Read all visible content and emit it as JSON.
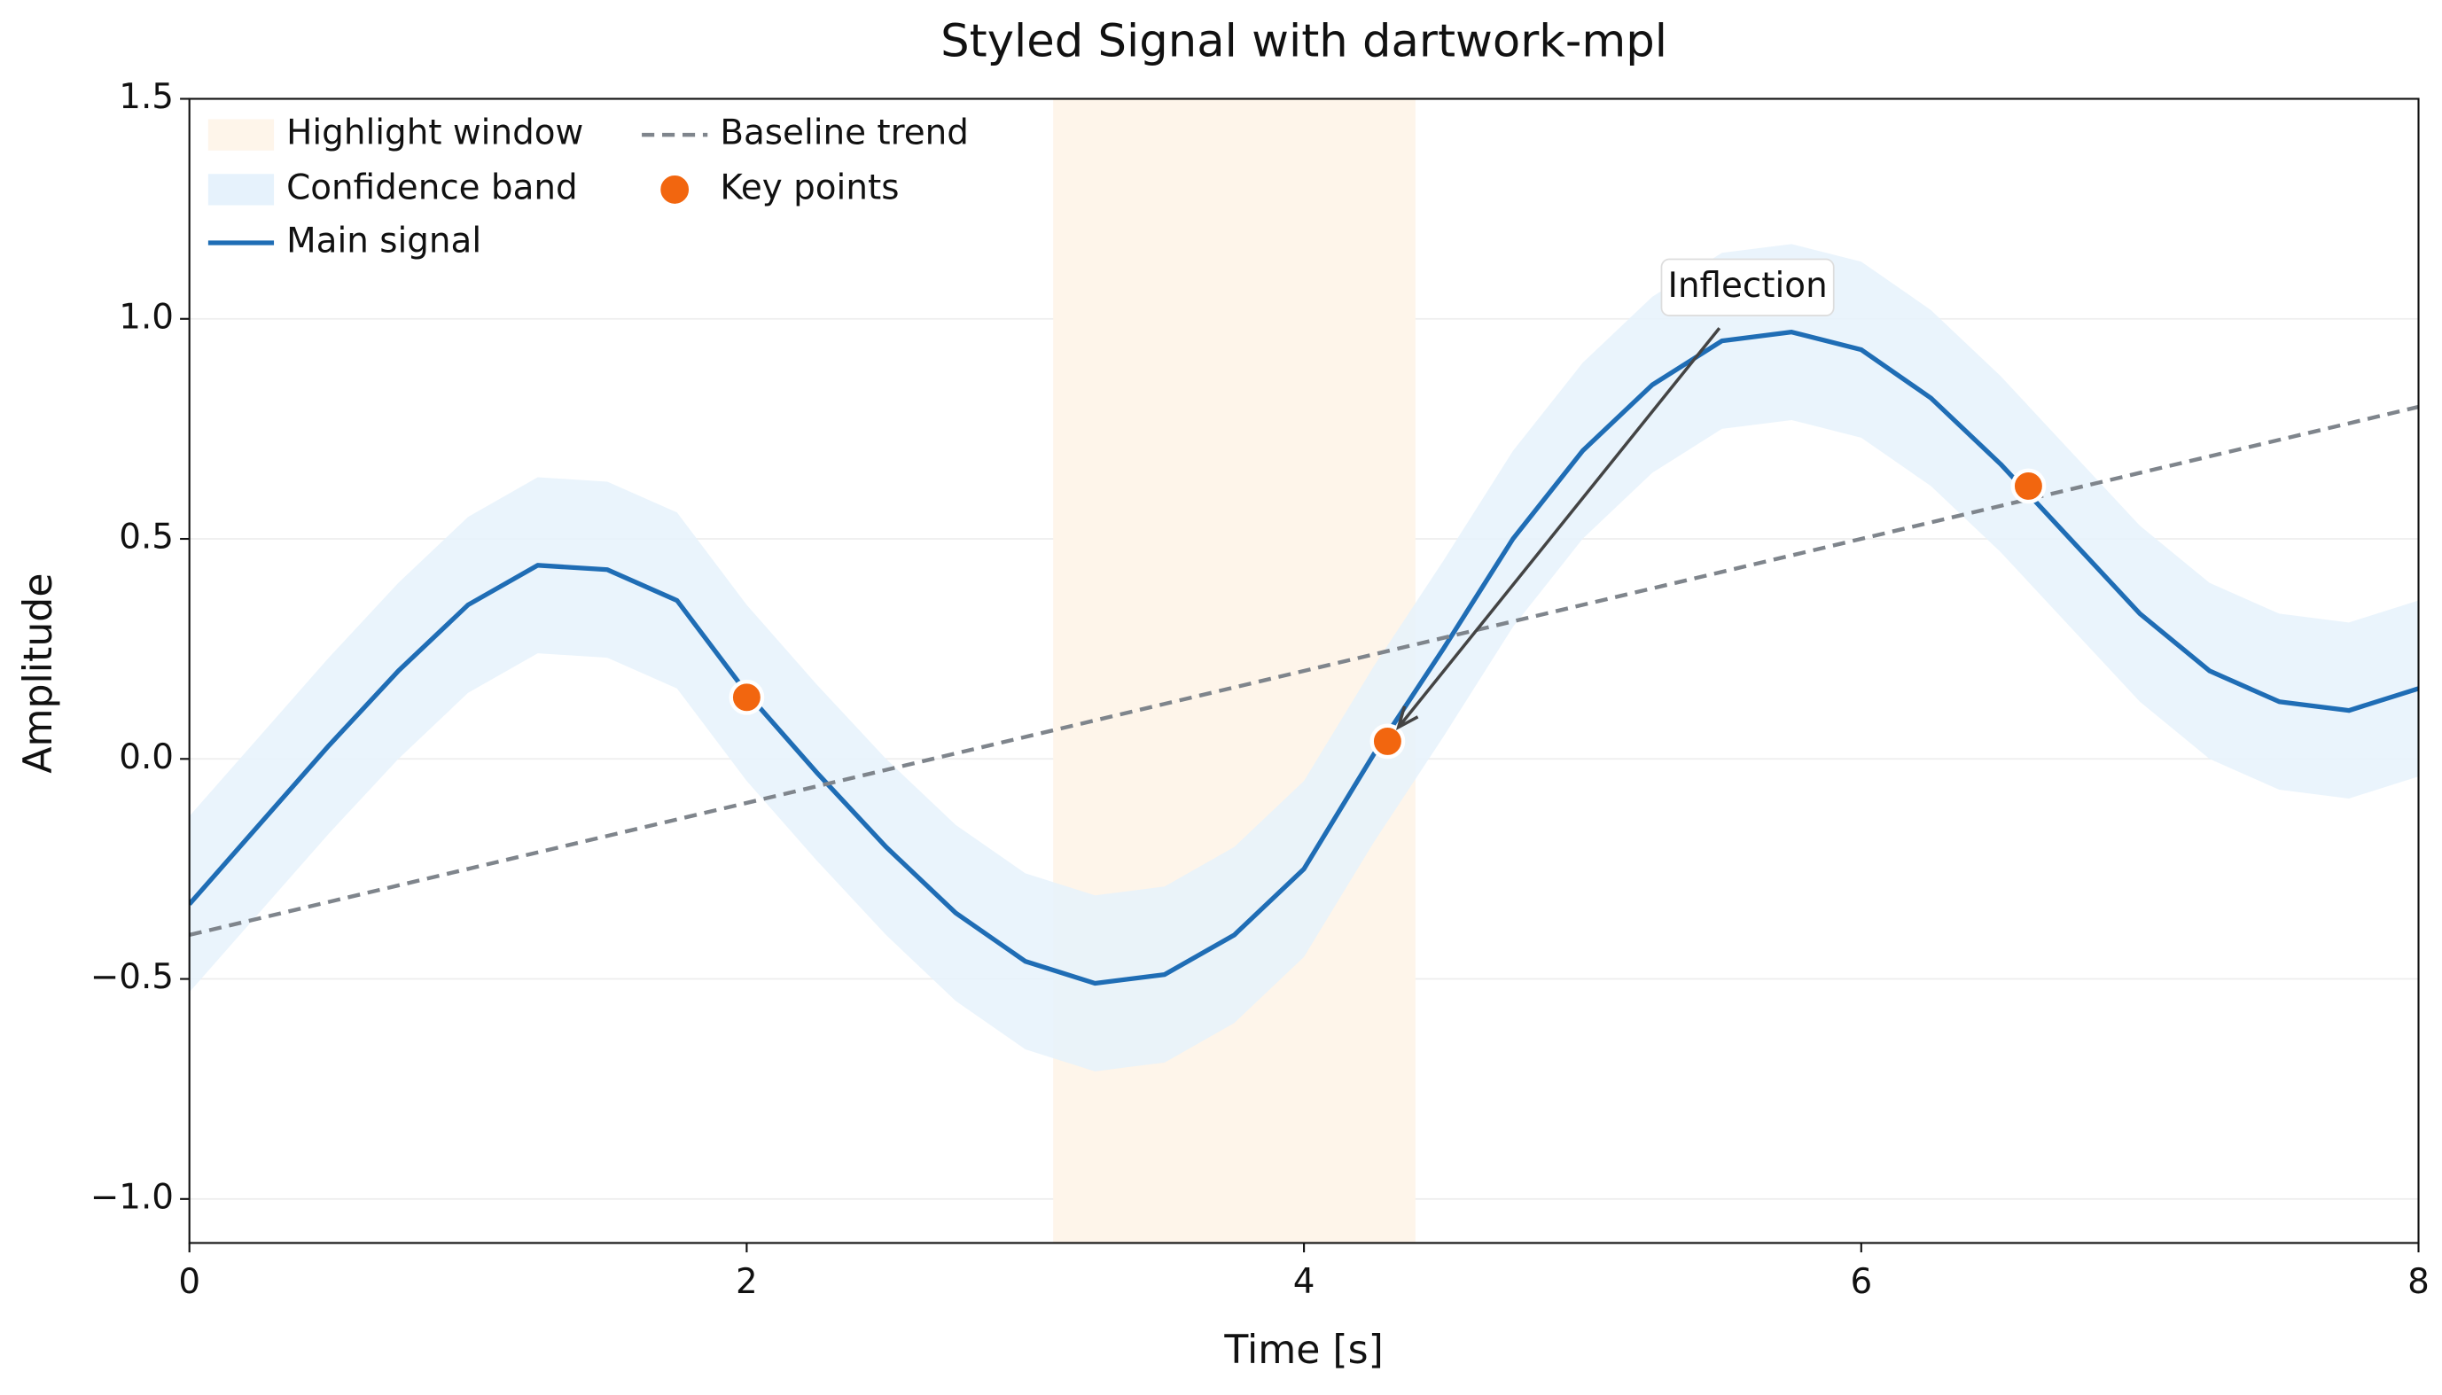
{
  "chart_data": {
    "type": "line",
    "title": "Styled Signal with dartwork-mpl",
    "x_label": "Time [s]",
    "y_label": "Amplitude",
    "xlim": [
      0,
      8
    ],
    "ylim": [
      -1.1,
      1.5
    ],
    "xticks": [
      0,
      2,
      4,
      6,
      8
    ],
    "yticks": [
      {
        "value": -1.0,
        "label": "−1.0"
      },
      {
        "value": -0.5,
        "label": "−0.5"
      },
      {
        "value": 0,
        "label": "0.0"
      },
      0.5,
      {
        "value": 1.0,
        "label": "1.0"
      },
      {
        "value": 1.5,
        "label": "1.5"
      }
    ],
    "grid": true,
    "legend": "upper left",
    "x": [
      0,
      0.25,
      0.5,
      0.75,
      1.0,
      1.25,
      1.5,
      1.75,
      2.0,
      2.25,
      2.5,
      2.75,
      3.0,
      3.25,
      3.5,
      3.75,
      4.0,
      4.25,
      4.5,
      4.75,
      5.0,
      5.25,
      5.5,
      5.75,
      6.0,
      6.25,
      6.5,
      6.75,
      7.0,
      7.25,
      7.5,
      7.75,
      8.0
    ],
    "series": [
      {
        "name": "Highlight window",
        "kind": "span",
        "color": "#fef5ea",
        "x": [
          3.1,
          4.4
        ]
      },
      {
        "name": "Confidence band",
        "kind": "band",
        "color": "#e6f2fc",
        "lower": [
          -0.53,
          -0.35,
          -0.17,
          0.0,
          0.15,
          0.24,
          0.23,
          0.16,
          -0.05,
          -0.23,
          -0.4,
          -0.55,
          -0.66,
          -0.71,
          -0.69,
          -0.6,
          -0.45,
          -0.19,
          0.05,
          0.3,
          0.5,
          0.65,
          0.75,
          0.77,
          0.73,
          0.62,
          0.47,
          0.3,
          0.13,
          0.0,
          -0.07,
          -0.09,
          -0.04
        ],
        "upper": [
          -0.13,
          0.05,
          0.23,
          0.4,
          0.55,
          0.64,
          0.63,
          0.56,
          0.35,
          0.17,
          0.0,
          -0.15,
          -0.26,
          -0.31,
          -0.29,
          -0.2,
          -0.05,
          0.21,
          0.45,
          0.7,
          0.9,
          1.05,
          1.15,
          1.17,
          1.13,
          1.02,
          0.87,
          0.7,
          0.53,
          0.4,
          0.33,
          0.31,
          0.36
        ]
      },
      {
        "name": "Main signal",
        "kind": "line",
        "color": "#1f6db5",
        "values": [
          -0.33,
          -0.15,
          0.03,
          0.2,
          0.35,
          0.44,
          0.43,
          0.36,
          0.15,
          -0.03,
          -0.2,
          -0.35,
          -0.46,
          -0.51,
          -0.49,
          -0.4,
          -0.25,
          0.01,
          0.25,
          0.5,
          0.7,
          0.85,
          0.95,
          0.97,
          0.93,
          0.82,
          0.67,
          0.5,
          0.33,
          0.2,
          0.13,
          0.11,
          0.16
        ]
      },
      {
        "name": "Baseline trend",
        "kind": "dashed",
        "color": "#7f858c",
        "x": [
          0,
          8
        ],
        "values": [
          -0.4,
          0.8
        ]
      },
      {
        "name": "Key points",
        "kind": "scatter",
        "color": "#f2660f",
        "x": [
          2.0,
          4.3,
          6.6
        ],
        "values": [
          0.14,
          0.04,
          0.62
        ]
      }
    ],
    "annotation": {
      "text": "Inflection",
      "xy": [
        4.3,
        0.04
      ]
    }
  }
}
